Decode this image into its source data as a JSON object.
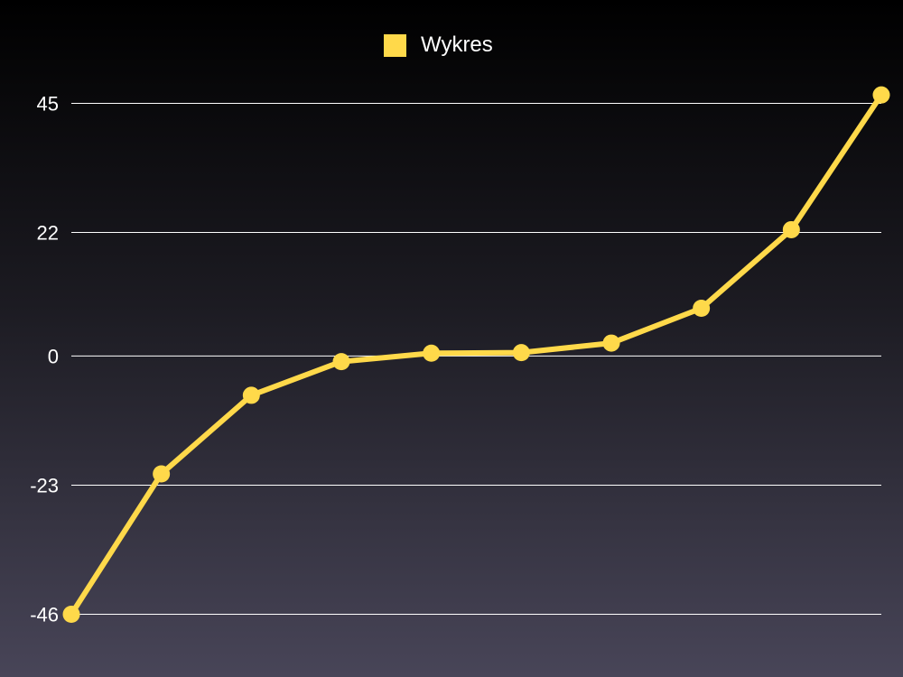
{
  "chart_data": {
    "type": "line",
    "x": [
      1,
      2,
      3,
      4,
      5,
      6,
      7,
      8,
      9,
      10
    ],
    "series": [
      {
        "name": "Wykres",
        "color": "#ffd94a",
        "values": [
          -46,
          -21,
          -7,
          -1,
          0.5,
          0.6,
          2.3,
          8.5,
          22.5,
          46.5
        ]
      }
    ],
    "yticks": [
      45,
      22,
      0,
      -23,
      -46
    ],
    "ytick_labels": [
      "45",
      "22",
      "0",
      "-23",
      "-46"
    ],
    "ylim": [
      -46,
      45
    ],
    "grid": "horizontal",
    "legend_position": "top-center",
    "title": "",
    "xlabel": "",
    "ylabel": ""
  }
}
